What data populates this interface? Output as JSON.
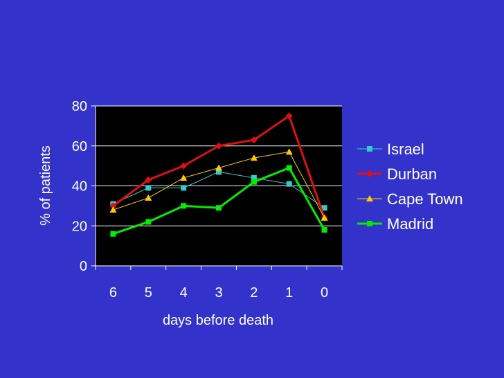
{
  "chart_data": {
    "type": "line",
    "xlabel": "days before death",
    "ylabel": "% of patients",
    "categories": [
      "6",
      "5",
      "4",
      "3",
      "2",
      "1",
      "0"
    ],
    "ylim": [
      0,
      80
    ],
    "yticks": [
      0,
      20,
      40,
      60,
      80
    ],
    "grid": true,
    "legend": "right",
    "series": [
      {
        "name": "Israel",
        "color": "#33CCCC",
        "marker": "square",
        "line_weight": "thin",
        "values": [
          31,
          39,
          39,
          47,
          44,
          41,
          29
        ]
      },
      {
        "name": "Durban",
        "color": "#DD1111",
        "marker": "diamond",
        "line_weight": "thick",
        "values": [
          30,
          43,
          50,
          60,
          63,
          75,
          24
        ]
      },
      {
        "name": "Cape Town",
        "color": "#FFCC00",
        "marker": "triangle",
        "line_weight": "thin",
        "values": [
          28,
          34,
          44,
          49,
          54,
          57,
          24
        ]
      },
      {
        "name": "Madrid",
        "color": "#00EE00",
        "marker": "square",
        "line_weight": "thick",
        "values": [
          16,
          22,
          30,
          29,
          42,
          49,
          18
        ]
      }
    ]
  },
  "colors": {
    "background": "#3333CC",
    "plot_area": "#000000",
    "gridline": "#FFFFFF",
    "text": "#FFFFFF"
  }
}
